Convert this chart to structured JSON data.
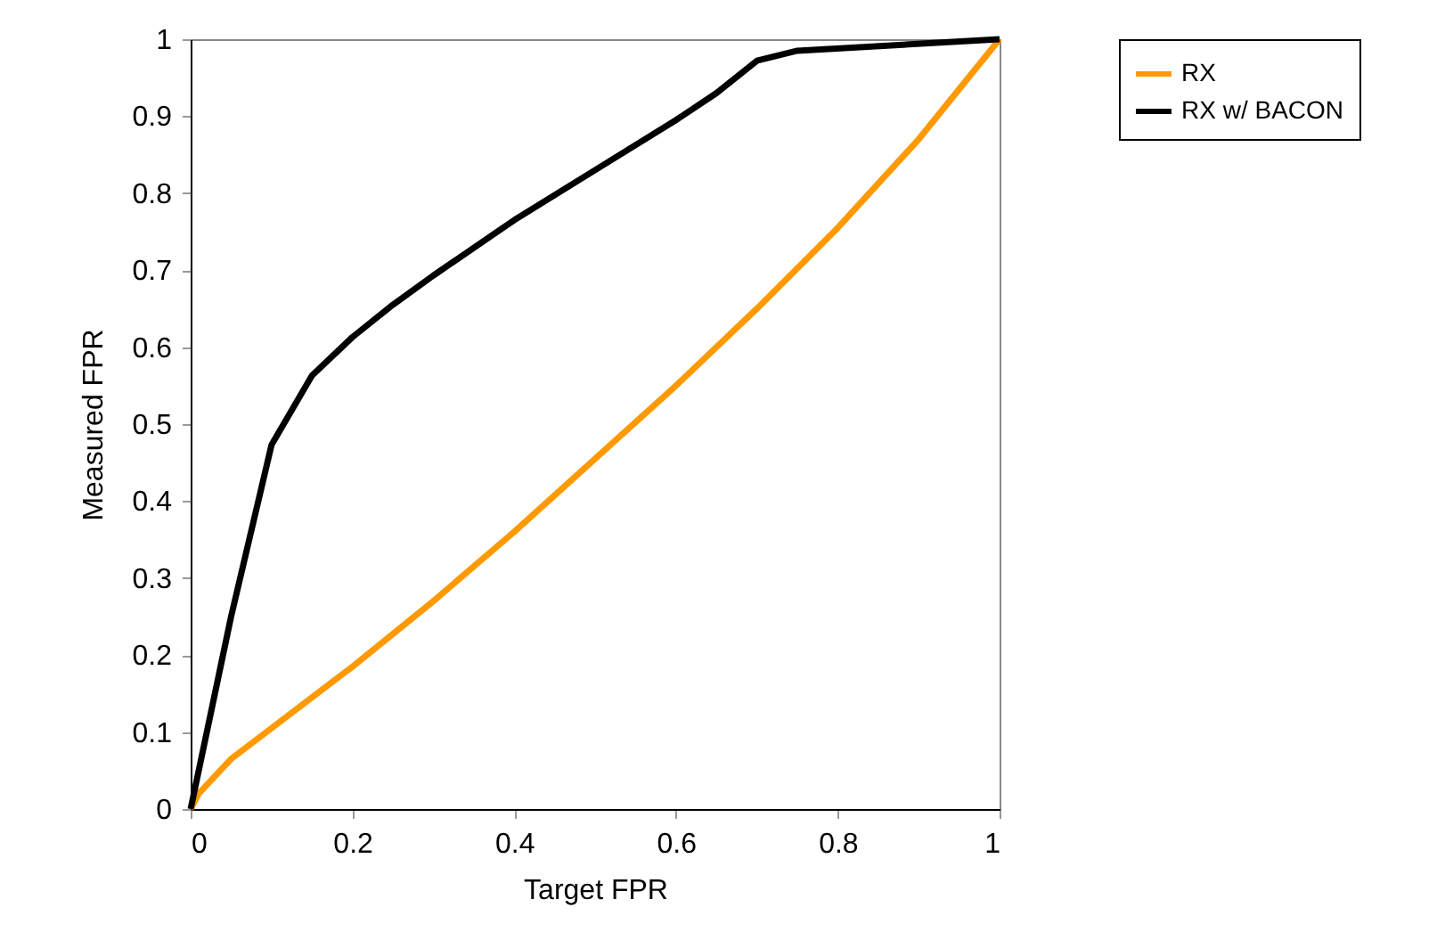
{
  "chart_data": {
    "type": "line",
    "xlabel": "Target FPR",
    "ylabel": "Measured FPR",
    "xlim": [
      0,
      1
    ],
    "ylim": [
      0,
      1
    ],
    "xticks": [
      0,
      0.2,
      0.4,
      0.6,
      0.8,
      1
    ],
    "yticks": [
      0,
      0.1,
      0.2,
      0.3,
      0.4,
      0.5,
      0.6,
      0.7,
      0.8,
      0.9,
      1
    ],
    "grid": false,
    "legend": "right",
    "marker": "none",
    "line_style": "solid",
    "series": [
      {
        "name": "RX",
        "color": "#ff9900",
        "x": [
          0,
          0.01,
          0.05,
          0.1,
          0.2,
          0.3,
          0.4,
          0.5,
          0.6,
          0.7,
          0.8,
          0.9,
          1
        ],
        "values": [
          0,
          0.02,
          0.065,
          0.105,
          0.185,
          0.27,
          0.36,
          0.455,
          0.55,
          0.65,
          0.755,
          0.87,
          1
        ]
      },
      {
        "name": "RX w/ BACON",
        "color": "#000000",
        "x": [
          0,
          0.05,
          0.1,
          0.15,
          0.2,
          0.25,
          0.3,
          0.4,
          0.5,
          0.6,
          0.65,
          0.7,
          0.75,
          1
        ],
        "values": [
          0,
          0.25,
          0.473,
          0.563,
          0.613,
          0.655,
          0.693,
          0.765,
          0.83,
          0.895,
          0.93,
          0.972,
          0.985,
          1
        ]
      }
    ]
  }
}
